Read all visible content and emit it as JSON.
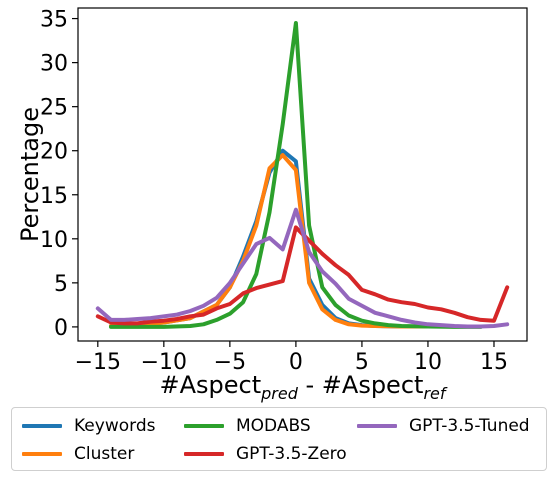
{
  "chart_data": {
    "type": "line",
    "xlabel_main": "#Aspect",
    "xlabel_sub1": "pred",
    "xlabel_mid": " - #Aspect",
    "xlabel_sub2": "ref",
    "ylabel": "Percentage",
    "xlim": [
      -16.5,
      17.5
    ],
    "ylim": [
      -1.6,
      36.2
    ],
    "xticks": [
      -15,
      -10,
      -5,
      0,
      5,
      10,
      15
    ],
    "yticks": [
      0,
      5,
      10,
      15,
      20,
      25,
      30,
      35
    ],
    "xtick_labels": [
      "−15",
      "−10",
      "−5",
      "0",
      "5",
      "10",
      "15"
    ],
    "ytick_labels": [
      "0",
      "5",
      "10",
      "15",
      "20",
      "25",
      "30",
      "35"
    ],
    "grid": false,
    "legend_position": "below plot",
    "series": [
      {
        "name": "Keywords",
        "color": "#1f77b4",
        "x": [
          -14,
          -12,
          -10,
          -8,
          -6,
          -5,
          -4,
          -3,
          -2,
          -1,
          0,
          1,
          2,
          3,
          4,
          5,
          6,
          8,
          10,
          12,
          14
        ],
        "y": [
          0.1,
          0.2,
          0.5,
          1.0,
          2.5,
          4.5,
          8.0,
          12.0,
          17.5,
          20.0,
          18.8,
          5.5,
          2.5,
          1.0,
          0.4,
          0.2,
          0.1,
          0.05,
          0.05,
          0.05,
          0.05
        ]
      },
      {
        "name": "Cluster",
        "color": "#ff7f0e",
        "x": [
          -14,
          -12,
          -10,
          -8,
          -6,
          -5,
          -4,
          -3,
          -2,
          -1,
          0,
          1,
          2,
          3,
          4,
          5,
          6,
          8,
          10,
          12,
          14
        ],
        "y": [
          0.1,
          0.2,
          0.5,
          1.0,
          2.5,
          4.5,
          7.5,
          11.5,
          18.0,
          19.5,
          17.8,
          5.0,
          2.0,
          0.8,
          0.3,
          0.15,
          0.1,
          0.05,
          0.05,
          0.05,
          0.05
        ]
      },
      {
        "name": "MODABS",
        "color": "#2ca02c",
        "x": [
          -14,
          -12,
          -10,
          -8,
          -7,
          -6,
          -5,
          -4,
          -3,
          -2,
          -1,
          0,
          1,
          2,
          3,
          4,
          5,
          6,
          7,
          8,
          10,
          12,
          14
        ],
        "y": [
          0,
          0,
          0,
          0.1,
          0.3,
          0.8,
          1.5,
          2.8,
          6.0,
          13.0,
          23.0,
          34.5,
          11.5,
          4.5,
          2.5,
          1.3,
          0.7,
          0.4,
          0.2,
          0.1,
          0.05,
          0,
          0
        ]
      },
      {
        "name": "GPT-3.5-Zero",
        "color": "#d62728",
        "x": [
          -15,
          -14,
          -13,
          -12,
          -11,
          -10,
          -9,
          -8,
          -7,
          -6,
          -5,
          -4,
          -3,
          -2,
          -1,
          0,
          1,
          2,
          3,
          4,
          5,
          6,
          7,
          8,
          9,
          10,
          11,
          12,
          13,
          14,
          15,
          16
        ],
        "y": [
          1.2,
          0.5,
          0.4,
          0.4,
          0.6,
          0.7,
          0.9,
          1.2,
          1.4,
          2.1,
          2.6,
          3.8,
          4.4,
          4.8,
          5.2,
          11.3,
          9.8,
          8.3,
          7.0,
          5.9,
          4.2,
          3.7,
          3.1,
          2.8,
          2.6,
          2.2,
          2.0,
          1.6,
          1.1,
          0.8,
          0.7,
          4.5
        ]
      },
      {
        "name": "GPT-3.5-Tuned",
        "color": "#9467bd",
        "x": [
          -15,
          -14,
          -13,
          -12,
          -11,
          -10,
          -9,
          -8,
          -7,
          -6,
          -5,
          -4,
          -3,
          -2,
          -1,
          0,
          1,
          2,
          3,
          4,
          5,
          6,
          7,
          8,
          9,
          10,
          11,
          12,
          13,
          14,
          15,
          16
        ],
        "y": [
          2.1,
          0.8,
          0.8,
          0.9,
          1.0,
          1.2,
          1.4,
          1.8,
          2.4,
          3.3,
          5.0,
          7.2,
          9.4,
          10.1,
          8.8,
          13.3,
          8.5,
          6.3,
          4.9,
          3.2,
          2.4,
          1.6,
          1.2,
          0.8,
          0.5,
          0.3,
          0.2,
          0.1,
          0.05,
          0.05,
          0.1,
          0.3
        ]
      }
    ]
  }
}
